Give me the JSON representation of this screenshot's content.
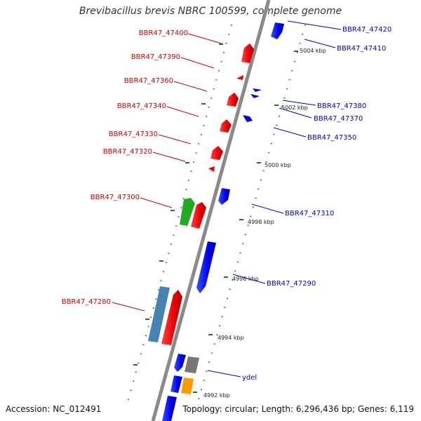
{
  "title": "Brevibacillus brevis NBRC 100599, complete genome",
  "accession": "Accession: NC_012491",
  "topology": "Topology: circular; Length: 6,296,436 bp; Genes: 6,119",
  "ticks": [
    "5004 kbp",
    "5002 kbp",
    "5000 kbp",
    "4998 kbp",
    "4996 kbp",
    "4994 kbp",
    "4992 kbp"
  ],
  "genes": [
    {
      "id": "BBR47_47420",
      "strand": "minus",
      "color": "#0000ee"
    },
    {
      "id": "BBR47_47410",
      "strand": "minus",
      "color": "#0000ee"
    },
    {
      "id": "BBR47_47400",
      "strand": "plus",
      "color": "#ee0000"
    },
    {
      "id": "BBR47_47390",
      "strand": "plus",
      "color": "#ee0000"
    },
    {
      "id": "BBR47_47380",
      "strand": "minus",
      "color": "#0000ee"
    },
    {
      "id": "BBR47_47370",
      "strand": "minus",
      "color": "#0000ee"
    },
    {
      "id": "BBR47_47360",
      "strand": "plus",
      "color": "#ee0000"
    },
    {
      "id": "BBR47_47350",
      "strand": "minus",
      "color": "#0000ee"
    },
    {
      "id": "BBR47_47340",
      "strand": "plus",
      "color": "#ee0000"
    },
    {
      "id": "BBR47_47330",
      "strand": "plus",
      "color": "#ee0000"
    },
    {
      "id": "BBR47_47320",
      "strand": "plus",
      "color": "#ee0000"
    },
    {
      "id": "BBR47_47310",
      "strand": "minus",
      "color": "#0000ee"
    },
    {
      "id": "BBR47_47300",
      "strand": "plus",
      "color": "#ee0000"
    },
    {
      "id": "BBR47_47290",
      "strand": "minus",
      "color": "#0000ee"
    },
    {
      "id": "BBR47_47280",
      "strand": "plus",
      "color": "#ee0000"
    },
    {
      "id": "ydel",
      "strand": "minus",
      "color": "#0000ee"
    }
  ],
  "colors": {
    "backbone": "#888888",
    "dots": "#1a7a1a",
    "plus_gene": "#ee0000",
    "minus_gene": "#1111ee",
    "green_gene": "#22aa22",
    "steelblue_gene": "#4682b4",
    "gray_gene": "#777777",
    "orange_gene": "#ff9900",
    "label_plus": "#cc0000",
    "label_minus": "#0000cc"
  }
}
